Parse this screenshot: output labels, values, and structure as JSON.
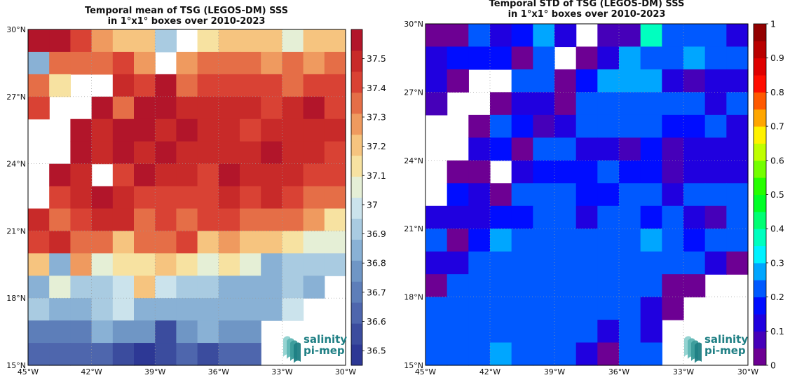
{
  "colors": {
    "mean_palette": [
      "#2d3895",
      "#3b4c9e",
      "#4e66ad",
      "#5d7eb9",
      "#6f96c5",
      "#89b1d5",
      "#a9cbe1",
      "#cbe3ec",
      "#e5efd6",
      "#f7e2a1",
      "#f6c47f",
      "#ef9a5f",
      "#e56e47",
      "#d94234",
      "#c82a29",
      "#b2152a"
    ],
    "jet_anchors": [
      "#800080",
      "#0000ff",
      "#00ffff",
      "#00ff00",
      "#ffff00",
      "#ff0000",
      "#7f0000"
    ],
    "grid": "#9a9a9a",
    "logo_teal": "#1f7f84"
  },
  "logo": {
    "line1": "salinity",
    "line2": "pi-mep"
  },
  "chart_data": [
    {
      "type": "heatmap",
      "title": "Temporal mean of TSG (LEGOS-DM) SSS",
      "subtitle": "in 1°x1° boxes over 2010-2023",
      "x_ticks": [
        "45°W",
        "42°W",
        "39°W",
        "36°W",
        "33°W",
        "30°W"
      ],
      "y_ticks": [
        "15°N",
        "18°N",
        "21°N",
        "24°N",
        "27°N",
        "30°N"
      ],
      "xlim": [
        -45,
        -30
      ],
      "ylim": [
        15,
        30
      ],
      "colorbar": {
        "min": 36.45,
        "max": 37.6,
        "ticks": [
          "36.5",
          "36.6",
          "36.7",
          "36.8",
          "36.9",
          "37",
          "37.1",
          "37.2",
          "37.3",
          "37.4",
          "37.5"
        ]
      },
      "cell_size_deg": 1,
      "row_order": "north-to-south",
      "cells": [
        [
          37.58,
          37.58,
          37.42,
          37.25,
          37.18,
          37.18,
          36.89,
          null,
          37.12,
          37.18,
          37.18,
          37.18,
          37.05,
          37.2,
          37.2
        ],
        [
          36.88,
          37.38,
          37.33,
          37.33,
          37.42,
          37.28,
          null,
          37.29,
          37.32,
          37.32,
          37.32,
          37.27,
          37.33,
          37.28,
          37.34
        ],
        [
          37.32,
          37.12,
          null,
          null,
          37.48,
          37.45,
          37.55,
          37.34,
          37.44,
          37.45,
          37.39,
          37.39,
          37.34,
          37.39,
          37.42
        ],
        [
          37.44,
          null,
          null,
          37.55,
          37.38,
          37.55,
          37.55,
          37.48,
          37.48,
          37.48,
          37.48,
          37.39,
          37.48,
          37.53,
          37.45
        ],
        [
          null,
          null,
          37.58,
          37.48,
          37.55,
          37.55,
          37.48,
          37.55,
          37.5,
          37.5,
          37.44,
          37.52,
          37.48,
          37.47,
          37.47
        ],
        [
          null,
          null,
          37.58,
          37.52,
          37.55,
          37.52,
          37.58,
          37.5,
          37.5,
          37.46,
          37.52,
          37.58,
          37.5,
          37.5,
          37.44
        ],
        [
          null,
          37.58,
          37.5,
          null,
          37.44,
          37.55,
          37.48,
          37.52,
          37.39,
          37.54,
          37.5,
          37.48,
          37.46,
          37.4,
          37.42
        ],
        [
          null,
          37.45,
          37.52,
          37.58,
          37.5,
          37.4,
          37.44,
          37.44,
          37.44,
          37.46,
          37.44,
          37.52,
          37.42,
          37.38,
          37.32
        ],
        [
          37.52,
          37.34,
          37.44,
          37.46,
          37.48,
          37.35,
          37.44,
          37.36,
          37.42,
          37.42,
          37.36,
          37.36,
          37.33,
          37.29,
          37.14
        ],
        [
          37.4,
          37.46,
          37.38,
          37.32,
          37.18,
          37.38,
          37.32,
          37.42,
          37.18,
          37.25,
          37.18,
          37.18,
          37.12,
          37.05,
          37.05
        ],
        [
          37.2,
          36.86,
          37.28,
          37.05,
          37.13,
          37.13,
          37.2,
          37.12,
          37.05,
          37.13,
          37.07,
          36.86,
          36.94,
          36.94,
          36.94
        ],
        [
          36.84,
          37.05,
          36.94,
          36.94,
          36.99,
          37.18,
          36.99,
          36.92,
          36.92,
          36.84,
          36.84,
          36.84,
          36.92,
          36.86,
          null
        ],
        [
          36.94,
          36.86,
          36.88,
          36.93,
          36.99,
          36.86,
          36.88,
          36.82,
          36.82,
          36.82,
          36.82,
          36.82,
          36.99,
          null,
          null
        ],
        [
          36.7,
          36.7,
          36.7,
          36.86,
          36.76,
          36.76,
          36.57,
          36.76,
          36.86,
          36.76,
          36.76,
          null,
          null,
          null,
          null
        ],
        [
          36.62,
          36.62,
          36.62,
          36.66,
          36.58,
          36.48,
          36.54,
          36.62,
          36.58,
          36.62,
          36.66,
          null,
          null,
          null,
          null
        ]
      ]
    },
    {
      "type": "heatmap",
      "title": "Temporal STD of TSG (LEGOS-DM) SSS",
      "subtitle": "in 1°x1° boxes over 2010-2023",
      "x_ticks": [
        "45°W",
        "42°W",
        "39°W",
        "36°W",
        "33°W",
        "30°W"
      ],
      "y_ticks": [
        "15°N",
        "18°N",
        "21°N",
        "24°N",
        "27°N",
        "30°N"
      ],
      "xlim": [
        -45,
        -30
      ],
      "ylim": [
        15,
        30
      ],
      "colorbar": {
        "min": 0,
        "max": 1,
        "ticks": [
          "0",
          "0.1",
          "0.2",
          "0.3",
          "0.4",
          "0.5",
          "0.6",
          "0.7",
          "0.8",
          "0.9",
          "1"
        ]
      },
      "cell_size_deg": 1,
      "row_order": "north-to-south",
      "cells": [
        [
          0.02,
          0.02,
          0.2,
          0.12,
          0.15,
          0.25,
          0.1,
          null,
          0.08,
          0.08,
          0.35,
          0.2,
          0.2,
          0.2,
          0.12
        ],
        [
          0.1,
          0.15,
          0.15,
          0.15,
          0.03,
          0.2,
          null,
          0.03,
          0.12,
          0.27,
          0.23,
          0.2,
          0.25,
          0.2,
          0.2
        ],
        [
          0.1,
          0.02,
          null,
          null,
          0.2,
          0.23,
          0.04,
          0.18,
          0.25,
          0.25,
          0.25,
          0.1,
          0.05,
          0.12,
          0.12
        ],
        [
          0.06,
          null,
          null,
          0.04,
          0.1,
          0.1,
          0.04,
          0.22,
          0.2,
          0.23,
          0.2,
          0.2,
          0.2,
          0.12,
          0.23
        ],
        [
          null,
          null,
          0.04,
          0.2,
          0.15,
          0.05,
          0.13,
          0.2,
          0.2,
          0.2,
          0.2,
          0.15,
          0.18,
          0.2,
          0.13
        ],
        [
          null,
          null,
          0.12,
          0.15,
          0.03,
          0.2,
          0.2,
          0.1,
          0.1,
          0.08,
          0.15,
          0.07,
          0.12,
          0.12,
          0.12
        ],
        [
          null,
          0.04,
          0.04,
          null,
          0.12,
          0.18,
          0.18,
          0.18,
          0.22,
          0.15,
          0.15,
          0.07,
          0.1,
          0.1,
          0.1
        ],
        [
          null,
          0.15,
          0.1,
          0.04,
          0.2,
          0.22,
          0.2,
          0.15,
          0.15,
          0.2,
          0.2,
          0.1,
          0.2,
          0.2,
          0.2
        ],
        [
          0.12,
          0.12,
          0.1,
          0.15,
          0.15,
          0.2,
          0.23,
          0.12,
          0.2,
          0.2,
          0.15,
          0.2,
          0.12,
          0.07,
          0.2
        ],
        [
          0.2,
          0.03,
          0.15,
          0.27,
          0.2,
          0.2,
          0.2,
          0.2,
          0.2,
          0.2,
          0.25,
          0.2,
          0.15,
          0.2,
          0.2
        ],
        [
          0.12,
          0.12,
          0.23,
          0.23,
          0.23,
          0.2,
          0.2,
          0.2,
          0.2,
          0.2,
          0.2,
          0.2,
          0.2,
          0.12,
          0.03
        ],
        [
          0.03,
          0.2,
          0.23,
          0.2,
          0.2,
          0.2,
          0.2,
          0.2,
          0.23,
          0.2,
          0.2,
          0.03,
          0.03,
          null,
          null
        ],
        [
          0.2,
          0.2,
          0.2,
          0.2,
          0.2,
          0.2,
          0.2,
          0.2,
          0.2,
          0.2,
          0.12,
          0.04,
          null,
          null,
          null
        ],
        [
          0.22,
          0.22,
          0.2,
          0.22,
          0.22,
          0.2,
          0.2,
          0.2,
          0.12,
          0.2,
          0.12,
          null,
          null,
          null,
          null
        ],
        [
          0.22,
          0.2,
          0.23,
          0.27,
          0.22,
          0.22,
          0.2,
          0.12,
          0.04,
          0.2,
          0.2,
          null,
          null,
          null,
          null
        ]
      ]
    }
  ]
}
